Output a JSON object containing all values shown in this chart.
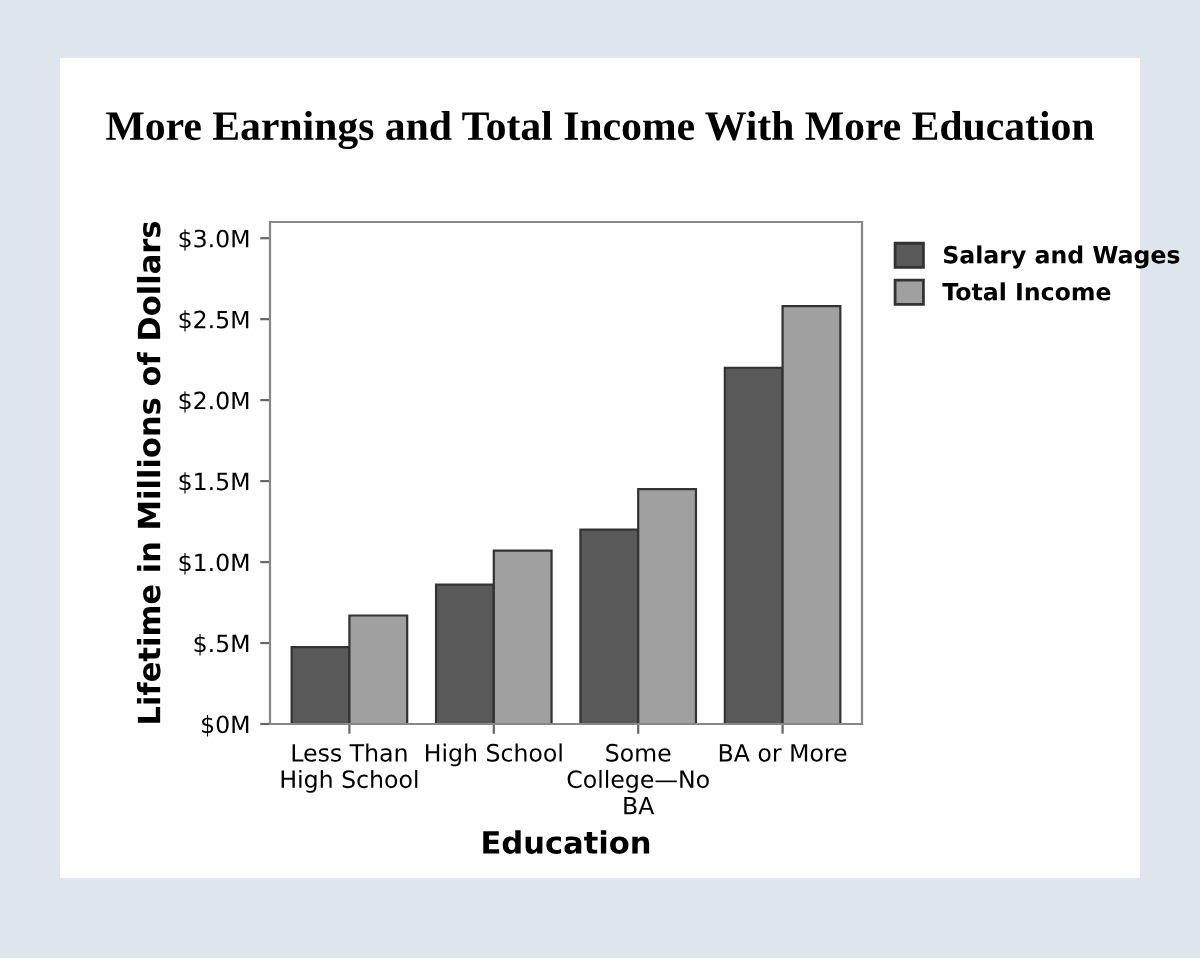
{
  "chart_data": {
    "type": "bar",
    "title": "More Earnings and Total Income With More Education",
    "xlabel": "Education",
    "ylabel": "Lifetime in Millions of Dollars",
    "categories": [
      "Less Than\nHigh School",
      "High School",
      "Some\nCollege—No\nBA",
      "BA or More"
    ],
    "series": [
      {
        "name": "Salary and Wages",
        "color": "#595959",
        "values": [
          0.475,
          0.86,
          1.2,
          2.2
        ]
      },
      {
        "name": "Total Income",
        "color": "#a0a0a0",
        "values": [
          0.67,
          1.07,
          1.45,
          2.58
        ]
      }
    ],
    "ylim": [
      0,
      3.1
    ],
    "yticks": [
      {
        "value": 0,
        "label": "$0M"
      },
      {
        "value": 0.5,
        "label": "$.5M"
      },
      {
        "value": 1.0,
        "label": "$1.0M"
      },
      {
        "value": 1.5,
        "label": "$1.5M"
      },
      {
        "value": 2.0,
        "label": "$2.0M"
      },
      {
        "value": 2.5,
        "label": "$2.5M"
      },
      {
        "value": 3.0,
        "label": "$3.0M"
      }
    ],
    "grid": false,
    "legend": "top right"
  }
}
